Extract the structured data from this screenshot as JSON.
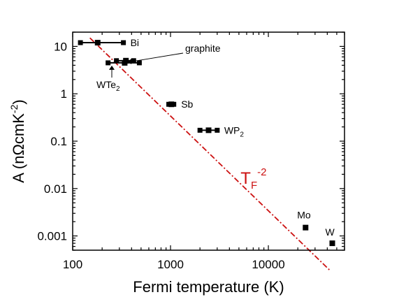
{
  "chart_data": {
    "type": "scatter",
    "xlabel": "Fermi temperature (K)",
    "ylabel_main": "A (nΩcmK",
    "ylabel_sup": "-2",
    "ylabel_close": ")",
    "x_scale": "log",
    "y_scale": "log",
    "xlim": [
      100,
      60000
    ],
    "ylim": [
      0.0005,
      20
    ],
    "x_ticks": [
      {
        "value": 100,
        "label": "100"
      },
      {
        "value": 1000,
        "label": "1000"
      },
      {
        "value": 10000,
        "label": "10000"
      }
    ],
    "y_ticks": [
      {
        "value": 10,
        "label": "10"
      },
      {
        "value": 1,
        "label": "1"
      },
      {
        "value": 0.1,
        "label": "0.1"
      },
      {
        "value": 0.01,
        "label": "0.01"
      },
      {
        "value": 0.001,
        "label": "0.001"
      }
    ],
    "grid": false,
    "points": [
      {
        "id": "bi",
        "x": 180,
        "x_min": 120,
        "x_max": 330,
        "y": 12,
        "label": "Bi"
      },
      {
        "id": "graphite",
        "x": 350,
        "x_min": 280,
        "x_max": 420,
        "y": 5,
        "label": "graphite"
      },
      {
        "id": "wte2",
        "x": 340,
        "x_min": 230,
        "x_max": 480,
        "y": 4.5,
        "label_main": "WTe",
        "label_sub": "2"
      },
      {
        "id": "sb",
        "x": 1020,
        "x_min": 960,
        "x_max": 1080,
        "y": 0.6,
        "label": "Sb"
      },
      {
        "id": "wp2",
        "x": 2450,
        "x_min": 2000,
        "x_max": 3000,
        "y": 0.17,
        "label_main": "WP",
        "label_sub": "2"
      },
      {
        "id": "mo",
        "x": 24000,
        "y": 0.0015,
        "label": "Mo"
      },
      {
        "id": "w",
        "x": 45000,
        "y": 0.0007,
        "label": "W"
      }
    ],
    "fit_line": {
      "name_main": "T",
      "name_sub": "F",
      "name_sup": "-2",
      "x_start": 150,
      "x_end": 43000,
      "coefficient": 340000,
      "exponent": -2,
      "color": "#cc1111"
    }
  }
}
